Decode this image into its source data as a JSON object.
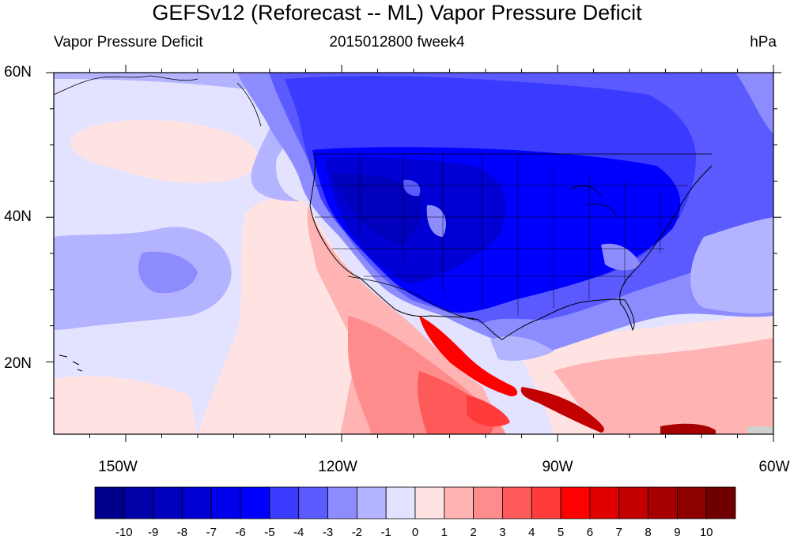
{
  "figure": {
    "title": "GEFSv12 (Reforecast -- ML) Vapor Pressure Deficit",
    "left_label": "Vapor Pressure Deficit",
    "center_label": "2015012800 fweek4",
    "right_label": "hPa"
  },
  "map": {
    "lon_range": [
      "160W",
      "60W"
    ],
    "lat_range": [
      "10N",
      "60N"
    ],
    "lat_ticks": [
      {
        "value": 60,
        "label": "60N"
      },
      {
        "value": 40,
        "label": "40N"
      },
      {
        "value": 20,
        "label": "20N"
      }
    ],
    "lon_ticks": [
      {
        "value": -150,
        "label": "150W"
      },
      {
        "value": -120,
        "label": "120W"
      },
      {
        "value": -90,
        "label": "90W"
      },
      {
        "value": -60,
        "label": "60W"
      }
    ]
  },
  "colorbar": {
    "labels": [
      "-10",
      "-9",
      "-8",
      "-7",
      "-6",
      "-5",
      "-4",
      "-3",
      "-2",
      "-1",
      "0",
      "1",
      "2",
      "3",
      "4",
      "5",
      "6",
      "7",
      "8",
      "9",
      "10"
    ],
    "colors": [
      "#00008c",
      "#0000a8",
      "#0000bd",
      "#0000d4",
      "#0000ea",
      "#0000ff",
      "#3b3bff",
      "#5a5aff",
      "#8c8cff",
      "#b3b3ff",
      "#e3e3ff",
      "#ffe3e3",
      "#ffb3b3",
      "#ff8c8c",
      "#ff5a5a",
      "#ff3b3b",
      "#ff0000",
      "#e00000",
      "#c20000",
      "#a80000",
      "#8c0000",
      "#700000"
    ]
  }
}
